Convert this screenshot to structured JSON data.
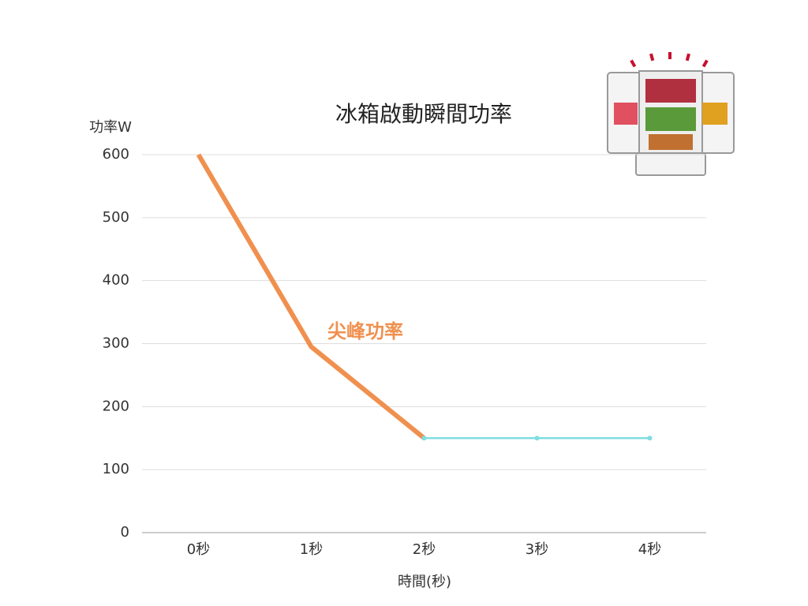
{
  "chart_data": {
    "type": "line",
    "title": "冰箱啟動瞬間功率",
    "y_label": "功率W",
    "x_label": "時間(秒)",
    "categories": [
      "0秒",
      "1秒",
      "2秒",
      "3秒",
      "4秒"
    ],
    "series": [
      {
        "color": "#f0904f",
        "values": [
          600,
          295,
          150,
          null,
          null
        ]
      },
      {
        "color": "#7fdde0",
        "values": [
          null,
          null,
          150,
          150,
          150
        ]
      }
    ],
    "annotation": {
      "text": "尖峰功率",
      "color": "#f0904f"
    },
    "ylim": [
      0,
      600
    ],
    "yticks": [
      0,
      100,
      200,
      300,
      400,
      500,
      600
    ],
    "grid": true
  }
}
